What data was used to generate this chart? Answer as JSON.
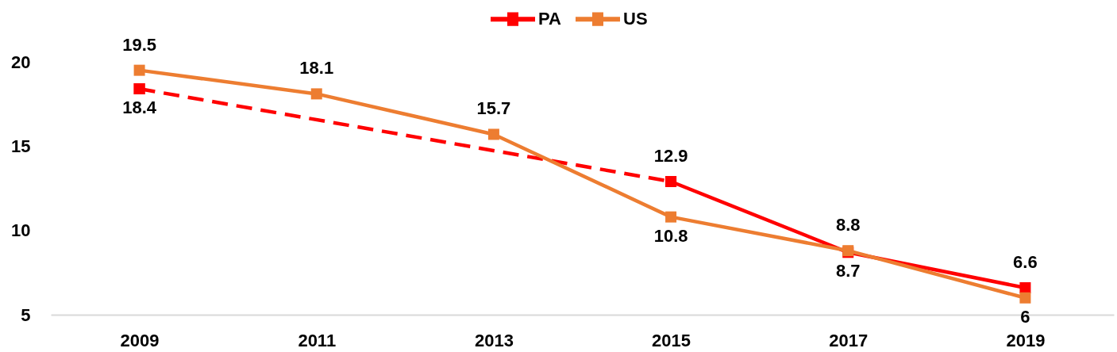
{
  "chart_data": {
    "type": "line",
    "x": [
      2009,
      2011,
      2013,
      2015,
      2017,
      2019
    ],
    "xlim": [
      2008,
      2020
    ],
    "xticks": [
      2009,
      2011,
      2013,
      2015,
      2017,
      2019
    ],
    "ylim": [
      5,
      20
    ],
    "yticks": [
      5,
      10,
      15,
      20
    ],
    "legend": "top",
    "marker": "square",
    "line_style": "solid",
    "series": [
      {
        "color": "#ff0000",
        "x": [
          2009,
          2015
        ],
        "values": [
          18.4,
          12.9
        ],
        "line_style": "dashed"
      },
      {
        "name": "PA",
        "color": "#ff0000",
        "values": [
          18.4,
          null,
          null,
          12.9,
          8.7,
          6.6
        ],
        "value_labels": [
          "18.4",
          null,
          null,
          "12.9",
          "8.7",
          "6.6"
        ]
      },
      {
        "name": "US",
        "color": "#ed7d31",
        "values": [
          19.5,
          18.1,
          15.7,
          10.8,
          8.8,
          6
        ],
        "value_labels": [
          "19.5",
          "18.1",
          "15.7",
          "10.8",
          "8.8",
          "6"
        ]
      }
    ]
  }
}
